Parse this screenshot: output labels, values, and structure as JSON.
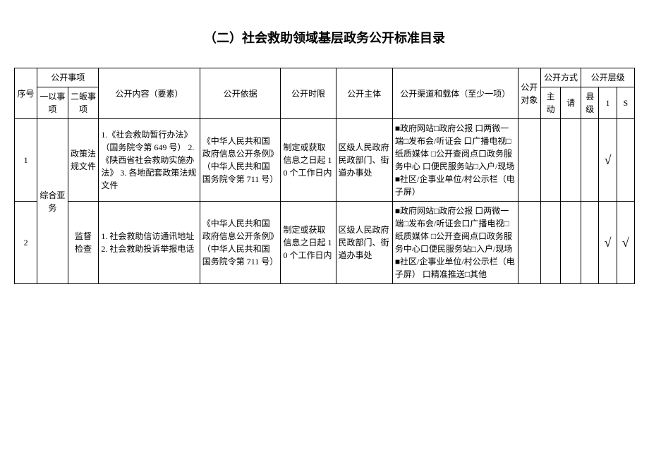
{
  "title": "（二）社会救助领域基层政务公开标准目录",
  "headers": {
    "seq": "序号",
    "matter": "公开事项",
    "l1": "一以事项",
    "l2": "二皈事项",
    "content": "公开内容（要素）",
    "basis": "公开依据",
    "time": "公开时限",
    "subject": "公开主体",
    "channel": "公开渠道和载体（至少一项）",
    "obj": "公开对象",
    "method": "公开方式",
    "level": "公开层级",
    "active": "主动",
    "req": "请",
    "county": "县级",
    "col1": "1",
    "colS": "S"
  },
  "rows": [
    {
      "seq": "1",
      "l1": "综合亚务",
      "l2": "政策法规文件",
      "content": "1.《社会救助暂行办法》（国务院令第 649 号）\n2.《陕西省社会救助实施办法》\n3. 各地配套政策法规文件",
      "basis": "《中华人民共和国政府信息公开条例》（中华人民共和国国务院令第 711 号）",
      "time": "制定或获取信息之日起 10 个工作日内",
      "subject": "区级人民政府民政部门、街道办事处",
      "channel": "■政府网站□政府公报\n口两微一端□发布会/听证会\n口广播电视□纸质媒体\n□公开查阅点口政务服务中心\n口便民服务站□入户/现场\n■社区/企事业单位/村公示栏（电子屏）",
      "checks": {
        "county": "",
        "c1": "√",
        "cS": ""
      }
    },
    {
      "seq": "2",
      "l2": "监督 检查",
      "content": "1. 社会救助信访通讯地址\n2. 社会救助投诉举报电话",
      "basis": "《中华人民共和国政府信息公开条例》（中华人民共和国国务院令第 711 号）",
      "time": "制定或获取信息之日起 10 个工作日内",
      "subject": "区级人民政府民政部门、街道办事处",
      "channel": "■政府网站□政府公报\n口两微一端□发布会/听证会口广播电视□纸质媒体\n□公开查阅点口政务服务中心口便民服务站□入户/现场\n■社区/企事业单位/村公示栏（电子屏）\n口精准推送□其他",
      "checks": {
        "county": "",
        "c1": "√",
        "cS": "√"
      }
    }
  ]
}
